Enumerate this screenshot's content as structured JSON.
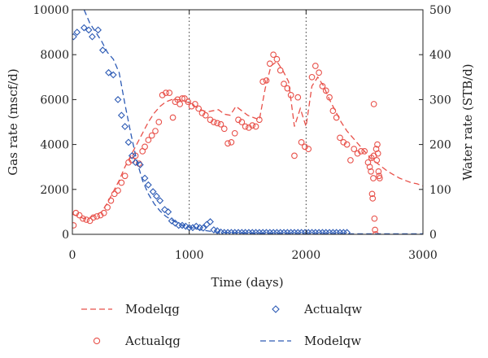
{
  "chart_data": {
    "type": "line",
    "xlabel": "Time (days)",
    "ylabel_left": "Gas rate (mscf/d)",
    "ylabel_right": "Water rate (STB/d)",
    "xlim": [
      0,
      3000
    ],
    "ylim_left": [
      0,
      10000
    ],
    "ylim_right": [
      0,
      500
    ],
    "x_ticks": [
      0,
      1000,
      2000,
      3000
    ],
    "y_left_ticks": [
      0,
      2000,
      4000,
      6000,
      8000,
      10000
    ],
    "y_right_ticks": [
      0,
      100,
      200,
      300,
      400,
      500
    ],
    "grid": "dotted vertical at x = 1000, 2000",
    "legend_placement": "below plot",
    "legend": [
      "Modelqg",
      "Actualqg",
      "Actualqw",
      "Modelqw"
    ],
    "colors": {
      "gas": "#e8514a",
      "water": "#2d5bb5"
    },
    "series": [
      {
        "name": "Modelqg",
        "axis": "left",
        "style": "dashed-line",
        "points": [
          [
            0,
            900
          ],
          [
            50,
            800
          ],
          [
            100,
            700
          ],
          [
            150,
            750
          ],
          [
            200,
            850
          ],
          [
            250,
            1000
          ],
          [
            300,
            1400
          ],
          [
            350,
            1900
          ],
          [
            400,
            2400
          ],
          [
            450,
            3000
          ],
          [
            500,
            3500
          ],
          [
            550,
            4000
          ],
          [
            600,
            4500
          ],
          [
            650,
            5000
          ],
          [
            700,
            5400
          ],
          [
            750,
            5700
          ],
          [
            800,
            5900
          ],
          [
            850,
            6000
          ],
          [
            900,
            6000
          ],
          [
            950,
            5950
          ],
          [
            1000,
            5850
          ],
          [
            1050,
            5700
          ],
          [
            1100,
            5550
          ],
          [
            1150,
            5450
          ],
          [
            1200,
            5500
          ],
          [
            1250,
            5550
          ],
          [
            1300,
            5350
          ],
          [
            1350,
            5300
          ],
          [
            1400,
            5700
          ],
          [
            1450,
            5500
          ],
          [
            1500,
            5300
          ],
          [
            1550,
            5200
          ],
          [
            1600,
            5100
          ],
          [
            1650,
            6500
          ],
          [
            1700,
            7500
          ],
          [
            1750,
            7700
          ],
          [
            1800,
            7300
          ],
          [
            1850,
            6800
          ],
          [
            1900,
            4800
          ],
          [
            1950,
            5600
          ],
          [
            2000,
            4800
          ],
          [
            2050,
            6600
          ],
          [
            2100,
            7000
          ],
          [
            2150,
            6600
          ],
          [
            2200,
            6000
          ],
          [
            2250,
            5500
          ],
          [
            2300,
            5000
          ],
          [
            2350,
            4600
          ],
          [
            2400,
            4300
          ],
          [
            2450,
            4000
          ],
          [
            2500,
            3700
          ],
          [
            2550,
            3400
          ],
          [
            2600,
            3200
          ],
          [
            2650,
            3000
          ],
          [
            2700,
            2800
          ],
          [
            2750,
            2650
          ],
          [
            2800,
            2500
          ],
          [
            2850,
            2400
          ],
          [
            2900,
            2300
          ],
          [
            2950,
            2250
          ],
          [
            3000,
            2150
          ]
        ]
      },
      {
        "name": "Actualqg",
        "axis": "left",
        "style": "circle-marker",
        "points": [
          [
            10,
            400
          ],
          [
            30,
            950
          ],
          [
            60,
            850
          ],
          [
            90,
            700
          ],
          [
            120,
            650
          ],
          [
            150,
            600
          ],
          [
            180,
            750
          ],
          [
            210,
            800
          ],
          [
            240,
            850
          ],
          [
            270,
            950
          ],
          [
            300,
            1200
          ],
          [
            330,
            1500
          ],
          [
            360,
            1800
          ],
          [
            390,
            1950
          ],
          [
            420,
            2300
          ],
          [
            450,
            2600
          ],
          [
            480,
            3200
          ],
          [
            510,
            3300
          ],
          [
            540,
            3500
          ],
          [
            570,
            3150
          ],
          [
            600,
            3700
          ],
          [
            620,
            3900
          ],
          [
            650,
            4200
          ],
          [
            680,
            4400
          ],
          [
            710,
            4600
          ],
          [
            740,
            5000
          ],
          [
            770,
            6200
          ],
          [
            800,
            6300
          ],
          [
            830,
            6300
          ],
          [
            860,
            5200
          ],
          [
            880,
            5900
          ],
          [
            900,
            6000
          ],
          [
            920,
            5800
          ],
          [
            940,
            6050
          ],
          [
            960,
            6050
          ],
          [
            990,
            5900
          ],
          [
            1020,
            5700
          ],
          [
            1050,
            5800
          ],
          [
            1080,
            5600
          ],
          [
            1110,
            5400
          ],
          [
            1140,
            5300
          ],
          [
            1180,
            5100
          ],
          [
            1210,
            5000
          ],
          [
            1240,
            4950
          ],
          [
            1270,
            4900
          ],
          [
            1300,
            4700
          ],
          [
            1330,
            4050
          ],
          [
            1360,
            4100
          ],
          [
            1390,
            4500
          ],
          [
            1420,
            5100
          ],
          [
            1450,
            5000
          ],
          [
            1480,
            4800
          ],
          [
            1510,
            4750
          ],
          [
            1540,
            4850
          ],
          [
            1570,
            4800
          ],
          [
            1600,
            5100
          ],
          [
            1630,
            6800
          ],
          [
            1660,
            6850
          ],
          [
            1690,
            7600
          ],
          [
            1720,
            8000
          ],
          [
            1750,
            7800
          ],
          [
            1780,
            7300
          ],
          [
            1810,
            6700
          ],
          [
            1840,
            6500
          ],
          [
            1870,
            6200
          ],
          [
            1900,
            3500
          ],
          [
            1930,
            6100
          ],
          [
            1960,
            4100
          ],
          [
            1990,
            3900
          ],
          [
            2020,
            3800
          ],
          [
            2050,
            7000
          ],
          [
            2080,
            7500
          ],
          [
            2110,
            7200
          ],
          [
            2140,
            6600
          ],
          [
            2170,
            6400
          ],
          [
            2200,
            6100
          ],
          [
            2230,
            5500
          ],
          [
            2260,
            5200
          ],
          [
            2290,
            4300
          ],
          [
            2320,
            4100
          ],
          [
            2350,
            4000
          ],
          [
            2380,
            3300
          ],
          [
            2410,
            3800
          ],
          [
            2440,
            3600
          ],
          [
            2470,
            3700
          ],
          [
            2500,
            3700
          ],
          [
            2530,
            3200
          ],
          [
            2545,
            3000
          ],
          [
            2555,
            2800
          ],
          [
            2560,
            3400
          ],
          [
            2565,
            1800
          ],
          [
            2570,
            1600
          ],
          [
            2575,
            2500
          ],
          [
            2580,
            3500
          ],
          [
            2585,
            700
          ],
          [
            2590,
            200
          ],
          [
            2595,
            0
          ],
          [
            2600,
            3800
          ],
          [
            2605,
            3300
          ],
          [
            2610,
            4000
          ],
          [
            2615,
            3600
          ],
          [
            2620,
            2800
          ],
          [
            2625,
            2600
          ],
          [
            2630,
            2500
          ],
          [
            2580,
            5800
          ]
        ]
      },
      {
        "name": "Actualqw",
        "axis": "right",
        "style": "diamond-marker",
        "points": [
          [
            10,
            440
          ],
          [
            40,
            450
          ],
          [
            100,
            460
          ],
          [
            140,
            455
          ],
          [
            170,
            440
          ],
          [
            220,
            455
          ],
          [
            260,
            410
          ],
          [
            310,
            360
          ],
          [
            350,
            355
          ],
          [
            390,
            300
          ],
          [
            420,
            265
          ],
          [
            450,
            240
          ],
          [
            480,
            205
          ],
          [
            510,
            175
          ],
          [
            540,
            160
          ],
          [
            580,
            155
          ],
          [
            620,
            125
          ],
          [
            650,
            110
          ],
          [
            690,
            95
          ],
          [
            720,
            85
          ],
          [
            750,
            75
          ],
          [
            790,
            55
          ],
          [
            820,
            50
          ],
          [
            850,
            30
          ],
          [
            880,
            25
          ],
          [
            910,
            20
          ],
          [
            940,
            20
          ],
          [
            970,
            18
          ],
          [
            1000,
            15
          ],
          [
            1030,
            15
          ],
          [
            1060,
            18
          ],
          [
            1090,
            15
          ],
          [
            1120,
            14
          ],
          [
            1150,
            22
          ],
          [
            1180,
            28
          ],
          [
            1210,
            10
          ],
          [
            1240,
            8
          ],
          [
            1270,
            5
          ],
          [
            1300,
            4
          ],
          [
            1330,
            4
          ],
          [
            1360,
            4
          ],
          [
            1390,
            4
          ],
          [
            1420,
            4
          ],
          [
            1450,
            4
          ],
          [
            1480,
            4
          ],
          [
            1510,
            4
          ],
          [
            1540,
            4
          ],
          [
            1570,
            4
          ],
          [
            1600,
            4
          ],
          [
            1630,
            4
          ],
          [
            1660,
            4
          ],
          [
            1690,
            4
          ],
          [
            1720,
            4
          ],
          [
            1750,
            4
          ],
          [
            1780,
            4
          ],
          [
            1810,
            4
          ],
          [
            1840,
            4
          ],
          [
            1870,
            4
          ],
          [
            1900,
            4
          ],
          [
            1930,
            4
          ],
          [
            1960,
            4
          ],
          [
            1990,
            4
          ],
          [
            2020,
            4
          ],
          [
            2050,
            4
          ],
          [
            2080,
            4
          ],
          [
            2110,
            4
          ],
          [
            2140,
            4
          ],
          [
            2170,
            4
          ],
          [
            2200,
            4
          ],
          [
            2230,
            4
          ],
          [
            2260,
            4
          ],
          [
            2290,
            4
          ],
          [
            2320,
            4
          ],
          [
            2350,
            4
          ]
        ]
      },
      {
        "name": "Modelqw",
        "axis": "right",
        "style": "dashed-line",
        "points": [
          [
            100,
            500
          ],
          [
            150,
            470
          ],
          [
            200,
            450
          ],
          [
            250,
            430
          ],
          [
            300,
            405
          ],
          [
            350,
            390
          ],
          [
            400,
            360
          ],
          [
            450,
            290
          ],
          [
            500,
            225
          ],
          [
            550,
            165
          ],
          [
            600,
            120
          ],
          [
            650,
            90
          ],
          [
            700,
            68
          ],
          [
            750,
            52
          ],
          [
            800,
            40
          ],
          [
            850,
            32
          ],
          [
            900,
            25
          ],
          [
            950,
            20
          ],
          [
            1000,
            16
          ],
          [
            1050,
            13
          ],
          [
            1100,
            10
          ],
          [
            1150,
            8
          ],
          [
            1200,
            6
          ],
          [
            1300,
            4
          ],
          [
            1400,
            3
          ],
          [
            1600,
            2
          ],
          [
            2000,
            1
          ],
          [
            2600,
            1
          ],
          [
            3000,
            1
          ]
        ]
      }
    ]
  }
}
